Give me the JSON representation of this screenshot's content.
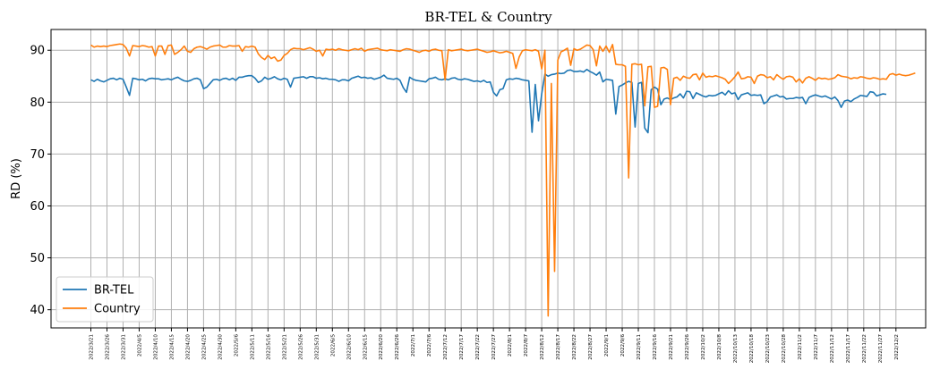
{
  "chart_data": {
    "type": "line",
    "title": "BR-TEL & Country",
    "xlabel": "",
    "ylabel": "RD (%)",
    "ylim": [
      36.5,
      94
    ],
    "yticks": [
      40,
      50,
      60,
      70,
      80,
      90
    ],
    "grid": true,
    "legend": "lower-left",
    "xtick_labels": [
      "2022/3/21",
      "2022/3/26",
      "2022/3/31",
      "2022/4/5",
      "2022/4/10",
      "2022/4/15",
      "2022/4/20",
      "2022/4/25",
      "2022/4/30",
      "2022/5/6",
      "2022/5/11",
      "2022/5/16",
      "2022/5/21",
      "2022/5/26",
      "2022/5/31",
      "2022/6/5",
      "2022/6/10",
      "2022/6/15",
      "2022/6/20",
      "2022/6/26",
      "2022/7/1",
      "2022/7/6",
      "2022/7/12",
      "2022/7/17",
      "2022/7/22",
      "2022/7/27",
      "2022/8/1",
      "2022/8/7",
      "2022/8/12",
      "2022/8/17",
      "2022/8/22",
      "2022/8/27",
      "2022/9/1",
      "2022/9/6",
      "2022/9/11",
      "2022/9/16",
      "2022/9/21",
      "2022/9/26",
      "2022/10/2",
      "2022/10/8",
      "2022/10/13",
      "2022/10/18",
      "2022/10/23",
      "2022/10/28",
      "2022/11/2",
      "2022/11/7",
      "2022/11/12",
      "2022/11/17",
      "2022/11/22",
      "2022/11/27",
      "2022/12/2"
    ],
    "series": [
      {
        "name": "BR-TEL",
        "color": "#1f77b4",
        "values": [
          84.3,
          84.0,
          84.4,
          84.1,
          83.9,
          84.2,
          84.5,
          84.6,
          84.3,
          84.6,
          84.4,
          82.9,
          81.3,
          84.6,
          84.5,
          84.3,
          84.4,
          84.1,
          84.5,
          84.6,
          84.5,
          84.5,
          84.3,
          84.4,
          84.5,
          84.3,
          84.6,
          84.8,
          84.4,
          84.1,
          84.0,
          84.2,
          84.5,
          84.6,
          84.3,
          82.6,
          82.9,
          83.6,
          84.3,
          84.4,
          84.2,
          84.5,
          84.6,
          84.3,
          84.6,
          84.2,
          84.8,
          84.8,
          85.0,
          85.1,
          85.1,
          84.6,
          83.8,
          84.1,
          84.8,
          84.4,
          84.6,
          84.9,
          84.5,
          84.3,
          84.6,
          84.4,
          82.9,
          84.6,
          84.7,
          84.8,
          84.9,
          84.6,
          84.9,
          84.9,
          84.6,
          84.7,
          84.5,
          84.6,
          84.4,
          84.4,
          84.3,
          84.0,
          84.3,
          84.3,
          84.1,
          84.6,
          84.8,
          85.0,
          84.7,
          84.8,
          84.6,
          84.7,
          84.4,
          84.6,
          84.8,
          85.2,
          84.6,
          84.5,
          84.4,
          84.6,
          84.2,
          82.8,
          81.9,
          84.8,
          84.4,
          84.2,
          84.1,
          84.0,
          83.9,
          84.5,
          84.6,
          84.8,
          84.4,
          84.3,
          84.5,
          84.3,
          84.6,
          84.7,
          84.4,
          84.3,
          84.5,
          84.4,
          84.2,
          84.0,
          84.1,
          83.9,
          84.2,
          83.8,
          83.9,
          81.9,
          81.2,
          82.4,
          82.6,
          84.3,
          84.5,
          84.4,
          84.6,
          84.5,
          84.3,
          84.2,
          84.1,
          74.2,
          83.4,
          76.4,
          81.6,
          85.4,
          85.0,
          85.3,
          85.4,
          85.6,
          85.5,
          85.6,
          86.1,
          86.2,
          85.9,
          85.9,
          86.0,
          85.8,
          86.3,
          85.9,
          85.6,
          85.2,
          85.8,
          83.9,
          84.4,
          84.3,
          84.2,
          77.7,
          83.0,
          83.3,
          83.7,
          84.0,
          83.8,
          75.2,
          83.6,
          83.8,
          75.0,
          74.1,
          82.4,
          82.9,
          82.5,
          79.5,
          80.6,
          80.8,
          80.5,
          80.8,
          81.0,
          81.6,
          80.8,
          82.1,
          82.0,
          80.7,
          81.8,
          81.5,
          81.2,
          81.0,
          81.3,
          81.2,
          81.3,
          81.6,
          81.9,
          81.4,
          82.2,
          81.6,
          81.8,
          80.5,
          81.4,
          81.6,
          81.8,
          81.3,
          81.4,
          81.3,
          81.4,
          79.7,
          80.1,
          81.0,
          81.2,
          81.4,
          81.0,
          81.1,
          80.6,
          80.7,
          80.7,
          80.9,
          80.8,
          80.9,
          79.7,
          80.9,
          81.2,
          81.4,
          81.2,
          81.0,
          81.2,
          80.9,
          80.6,
          81.0,
          80.3,
          79.0,
          80.2,
          80.4,
          80.1,
          80.6,
          80.9,
          81.3,
          81.2,
          81.1,
          82.0,
          81.9,
          81.2,
          81.4,
          81.6,
          81.5
        ]
      },
      {
        "name": "Country",
        "color": "#ff7f0e",
        "values": [
          91.0,
          90.6,
          90.8,
          90.7,
          90.8,
          90.7,
          90.9,
          91.0,
          91.1,
          91.2,
          91.1,
          90.4,
          88.9,
          90.9,
          90.8,
          90.7,
          90.9,
          90.8,
          90.6,
          90.7,
          88.9,
          90.8,
          90.8,
          89.2,
          90.9,
          91.0,
          89.2,
          89.6,
          90.1,
          90.8,
          89.8,
          89.6,
          90.3,
          90.6,
          90.7,
          90.5,
          90.2,
          90.6,
          90.8,
          90.9,
          91.0,
          90.6,
          90.6,
          90.9,
          90.8,
          90.8,
          90.9,
          89.8,
          90.7,
          90.6,
          90.8,
          90.6,
          89.3,
          88.6,
          88.2,
          89.0,
          88.4,
          88.7,
          87.9,
          88.1,
          89.0,
          89.4,
          90.1,
          90.4,
          90.3,
          90.3,
          90.1,
          90.3,
          90.5,
          90.2,
          89.8,
          90.0,
          88.9,
          90.2,
          90.1,
          90.2,
          90.0,
          90.3,
          90.1,
          90.0,
          89.9,
          90.1,
          90.3,
          90.1,
          90.4,
          89.8,
          90.1,
          90.2,
          90.3,
          90.4,
          90.1,
          90.0,
          89.9,
          90.1,
          90.0,
          89.9,
          89.8,
          90.1,
          90.3,
          90.2,
          90.0,
          89.8,
          89.6,
          89.9,
          90.0,
          89.8,
          90.1,
          90.2,
          90.0,
          89.9,
          84.3,
          90.1,
          89.9,
          90.0,
          90.1,
          90.2,
          90.0,
          89.9,
          90.0,
          90.1,
          90.2,
          90.0,
          89.8,
          89.6,
          89.7,
          89.9,
          89.7,
          89.5,
          89.6,
          89.8,
          89.6,
          89.4,
          86.5,
          88.7,
          89.9,
          90.1,
          90.0,
          89.9,
          90.1,
          89.8,
          86.4,
          90.0,
          38.8,
          83.6,
          47.4,
          88.1,
          89.7,
          90.0,
          90.4,
          87.1,
          90.3,
          90.0,
          90.2,
          90.6,
          91.0,
          90.9,
          90.1,
          87.0,
          90.8,
          89.8,
          90.8,
          89.6,
          91.1,
          87.3,
          87.2,
          87.2,
          86.9,
          65.4,
          87.3,
          87.4,
          87.2,
          87.3,
          79.3,
          86.8,
          86.9,
          79.0,
          79.2,
          86.6,
          86.7,
          86.3,
          79.5,
          84.6,
          84.8,
          84.2,
          85.0,
          84.7,
          84.6,
          85.3,
          85.4,
          84.3,
          85.6,
          84.8,
          85.0,
          84.9,
          85.1,
          84.9,
          84.7,
          84.4,
          83.6,
          84.2,
          84.9,
          85.8,
          84.5,
          84.6,
          84.9,
          84.8,
          83.6,
          85.0,
          85.3,
          85.2,
          84.7,
          84.9,
          84.3,
          85.3,
          84.8,
          84.4,
          84.9,
          85.0,
          84.8,
          83.9,
          84.5,
          83.7,
          84.6,
          84.9,
          84.6,
          84.2,
          84.7,
          84.5,
          84.6,
          84.4,
          84.5,
          84.7,
          85.3,
          85.0,
          84.9,
          84.8,
          84.5,
          84.7,
          84.6,
          84.9,
          84.8,
          84.6,
          84.5,
          84.7,
          84.6,
          84.4,
          84.5,
          84.4,
          85.3,
          85.5,
          85.2,
          85.4,
          85.2,
          85.1,
          85.2,
          85.4,
          85.6
        ]
      }
    ]
  }
}
